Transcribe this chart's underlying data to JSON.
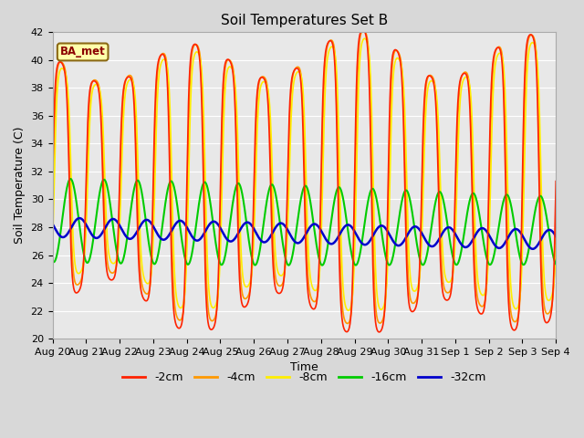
{
  "title": "Soil Temperatures Set B",
  "xlabel": "Time",
  "ylabel": "Soil Temperature (C)",
  "ylim": [
    20,
    42
  ],
  "yticks": [
    20,
    22,
    24,
    26,
    28,
    30,
    32,
    34,
    36,
    38,
    40,
    42
  ],
  "fig_bg_color": "#d8d8d8",
  "plot_bg_color": "#e8e8e8",
  "legend_label": "BA_met",
  "series": [
    {
      "label": "-2cm",
      "color": "#ff2200",
      "lw": 1.2
    },
    {
      "label": "-4cm",
      "color": "#ff9900",
      "lw": 1.2
    },
    {
      "label": "-8cm",
      "color": "#ffee00",
      "lw": 1.2
    },
    {
      "label": "-16cm",
      "color": "#00cc00",
      "lw": 1.5
    },
    {
      "label": "-32cm",
      "color": "#0000cc",
      "lw": 1.8
    }
  ]
}
